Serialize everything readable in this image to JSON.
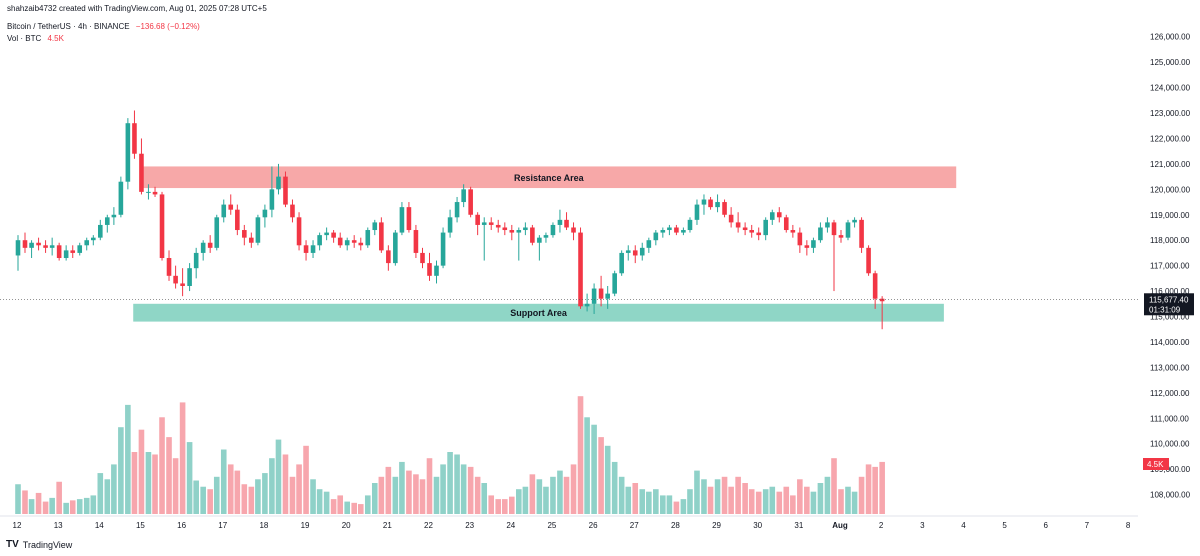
{
  "header": {
    "created": "shahzaib4732 created with TradingView.com, Aug 01, 2025 07:28 UTC+5",
    "symbol": "Bitcoin / TetherUS · 4h · BINANCE",
    "change": "−136.68 (−0.12%)",
    "volume_label": "Vol · BTC",
    "volume_value": "4.5K"
  },
  "footer": {
    "logo": "TV",
    "brand": "TradingView"
  },
  "colors": {
    "up": "#26a69a",
    "down": "#f23645",
    "up_vol": "#8fd1c8",
    "down_vol": "#f7a6ad",
    "resistance": "#f7a8a8",
    "support": "#8fd6c6"
  },
  "chart_data": {
    "type": "candlestick",
    "price_axis": {
      "ylim": [
        107000,
        126500
      ],
      "ticks": [
        "108,000.00",
        "109,000.00",
        "110,000.00",
        "111,000.00",
        "112,000.00",
        "113,000.00",
        "114,000.00",
        "115,000.00",
        "116,000.00",
        "117,000.00",
        "118,000.00",
        "119,000.00",
        "120,000.00",
        "121,000.00",
        "122,000.00",
        "123,000.00",
        "124,000.00",
        "125,000.00",
        "126,000.00"
      ],
      "tick_values": [
        108000,
        109000,
        110000,
        111000,
        112000,
        113000,
        114000,
        115000,
        116000,
        117000,
        118000,
        119000,
        120000,
        121000,
        122000,
        123000,
        124000,
        125000,
        126000
      ]
    },
    "time_axis": {
      "labels": [
        "12",
        "13",
        "14",
        "15",
        "16",
        "17",
        "18",
        "19",
        "20",
        "21",
        "22",
        "23",
        "24",
        "25",
        "26",
        "27",
        "28",
        "29",
        "30",
        "31",
        "Aug",
        "2",
        "3",
        "4",
        "5",
        "6",
        "7",
        "8"
      ]
    },
    "current_price": {
      "label": "115,677.40",
      "value": 115677.4,
      "countdown": "01:31:09"
    },
    "volume_tag": "4.5K",
    "zones": [
      {
        "label": "Resistance Area",
        "from_day": 15,
        "to_day": 34.8,
        "low": 120050,
        "high": 120900
      },
      {
        "label": "Support Area",
        "from_day": 14.8,
        "to_day": 34.5,
        "low": 114800,
        "high": 115500
      }
    ],
    "candles": [
      {
        "t": 0.0,
        "o": 117400,
        "h": 118200,
        "l": 116800,
        "c": 118000,
        "v": 0.24
      },
      {
        "t": 0.17,
        "o": 118000,
        "h": 118300,
        "l": 117500,
        "c": 117700,
        "v": 0.19
      },
      {
        "t": 0.33,
        "o": 117700,
        "h": 118000,
        "l": 117300,
        "c": 117900,
        "v": 0.12
      },
      {
        "t": 0.5,
        "o": 117900,
        "h": 118100,
        "l": 117600,
        "c": 117800,
        "v": 0.17
      },
      {
        "t": 0.67,
        "o": 117800,
        "h": 118000,
        "l": 117500,
        "c": 117700,
        "v": 0.1
      },
      {
        "t": 0.83,
        "o": 117700,
        "h": 118100,
        "l": 117400,
        "c": 117800,
        "v": 0.13
      },
      {
        "t": 1.0,
        "o": 117800,
        "h": 117900,
        "l": 117200,
        "c": 117300,
        "v": 0.26
      },
      {
        "t": 1.17,
        "o": 117300,
        "h": 117800,
        "l": 117200,
        "c": 117600,
        "v": 0.09
      },
      {
        "t": 1.33,
        "o": 117600,
        "h": 117800,
        "l": 117300,
        "c": 117500,
        "v": 0.11
      },
      {
        "t": 1.5,
        "o": 117500,
        "h": 117900,
        "l": 117400,
        "c": 117800,
        "v": 0.12
      },
      {
        "t": 1.67,
        "o": 117800,
        "h": 118100,
        "l": 117600,
        "c": 118000,
        "v": 0.13
      },
      {
        "t": 1.83,
        "o": 118000,
        "h": 118200,
        "l": 117800,
        "c": 118100,
        "v": 0.15
      },
      {
        "t": 2.0,
        "o": 118100,
        "h": 118800,
        "l": 118000,
        "c": 118600,
        "v": 0.33
      },
      {
        "t": 2.17,
        "o": 118600,
        "h": 119000,
        "l": 118300,
        "c": 118900,
        "v": 0.28
      },
      {
        "t": 2.33,
        "o": 118900,
        "h": 119300,
        "l": 118600,
        "c": 119000,
        "v": 0.4
      },
      {
        "t": 2.5,
        "o": 119000,
        "h": 120500,
        "l": 118900,
        "c": 120300,
        "v": 0.7
      },
      {
        "t": 2.67,
        "o": 120300,
        "h": 122800,
        "l": 120000,
        "c": 122600,
        "v": 0.88
      },
      {
        "t": 2.83,
        "o": 122600,
        "h": 123100,
        "l": 121200,
        "c": 121400,
        "v": 0.5
      },
      {
        "t": 3.0,
        "o": 121400,
        "h": 122000,
        "l": 119800,
        "c": 119900,
        "v": 0.68
      },
      {
        "t": 3.17,
        "o": 119900,
        "h": 120200,
        "l": 119600,
        "c": 119900,
        "v": 0.5
      },
      {
        "t": 3.33,
        "o": 119900,
        "h": 120100,
        "l": 119700,
        "c": 119800,
        "v": 0.48
      },
      {
        "t": 3.5,
        "o": 119800,
        "h": 119900,
        "l": 117200,
        "c": 117300,
        "v": 0.78
      },
      {
        "t": 3.67,
        "o": 117300,
        "h": 117600,
        "l": 116400,
        "c": 116600,
        "v": 0.62
      },
      {
        "t": 3.83,
        "o": 116600,
        "h": 117000,
        "l": 116100,
        "c": 116300,
        "v": 0.45
      },
      {
        "t": 4.0,
        "o": 116300,
        "h": 116900,
        "l": 115800,
        "c": 116200,
        "v": 0.9
      },
      {
        "t": 4.17,
        "o": 116200,
        "h": 117100,
        "l": 116000,
        "c": 116900,
        "v": 0.58
      },
      {
        "t": 4.33,
        "o": 116900,
        "h": 117700,
        "l": 116500,
        "c": 117500,
        "v": 0.27
      },
      {
        "t": 4.5,
        "o": 117500,
        "h": 118000,
        "l": 117200,
        "c": 117900,
        "v": 0.22
      },
      {
        "t": 4.67,
        "o": 117900,
        "h": 118200,
        "l": 117500,
        "c": 117700,
        "v": 0.2
      },
      {
        "t": 4.83,
        "o": 117700,
        "h": 119000,
        "l": 117600,
        "c": 118900,
        "v": 0.3
      },
      {
        "t": 5.0,
        "o": 118900,
        "h": 119600,
        "l": 118700,
        "c": 119400,
        "v": 0.52
      },
      {
        "t": 5.17,
        "o": 119400,
        "h": 119800,
        "l": 119000,
        "c": 119200,
        "v": 0.4
      },
      {
        "t": 5.33,
        "o": 119200,
        "h": 119400,
        "l": 118200,
        "c": 118400,
        "v": 0.35
      },
      {
        "t": 5.5,
        "o": 118400,
        "h": 118600,
        "l": 117800,
        "c": 118100,
        "v": 0.24
      },
      {
        "t": 5.67,
        "o": 118100,
        "h": 118300,
        "l": 117700,
        "c": 117900,
        "v": 0.22
      },
      {
        "t": 5.83,
        "o": 117900,
        "h": 119000,
        "l": 117800,
        "c": 118900,
        "v": 0.28
      },
      {
        "t": 6.0,
        "o": 118900,
        "h": 119400,
        "l": 118500,
        "c": 119200,
        "v": 0.33
      },
      {
        "t": 6.17,
        "o": 119200,
        "h": 120900,
        "l": 118900,
        "c": 120000,
        "v": 0.45
      },
      {
        "t": 6.33,
        "o": 120000,
        "h": 121000,
        "l": 119800,
        "c": 120500,
        "v": 0.6
      },
      {
        "t": 6.5,
        "o": 120500,
        "h": 120700,
        "l": 119300,
        "c": 119400,
        "v": 0.48
      },
      {
        "t": 6.67,
        "o": 119400,
        "h": 119600,
        "l": 118700,
        "c": 118900,
        "v": 0.3
      },
      {
        "t": 6.83,
        "o": 118900,
        "h": 119100,
        "l": 117600,
        "c": 117800,
        "v": 0.4
      },
      {
        "t": 7.0,
        "o": 117800,
        "h": 118000,
        "l": 117200,
        "c": 117500,
        "v": 0.55
      },
      {
        "t": 7.17,
        "o": 117500,
        "h": 118000,
        "l": 117300,
        "c": 117800,
        "v": 0.28
      },
      {
        "t": 7.33,
        "o": 117800,
        "h": 118300,
        "l": 117600,
        "c": 118200,
        "v": 0.2
      },
      {
        "t": 7.5,
        "o": 118200,
        "h": 118500,
        "l": 118000,
        "c": 118300,
        "v": 0.18
      },
      {
        "t": 7.67,
        "o": 118300,
        "h": 118400,
        "l": 117900,
        "c": 118100,
        "v": 0.12
      },
      {
        "t": 7.83,
        "o": 118100,
        "h": 118300,
        "l": 117700,
        "c": 117800,
        "v": 0.15
      },
      {
        "t": 8.0,
        "o": 117800,
        "h": 118100,
        "l": 117600,
        "c": 118000,
        "v": 0.1
      },
      {
        "t": 8.17,
        "o": 118000,
        "h": 118200,
        "l": 117700,
        "c": 117900,
        "v": 0.09
      },
      {
        "t": 8.33,
        "o": 117900,
        "h": 118100,
        "l": 117600,
        "c": 117800,
        "v": 0.08
      },
      {
        "t": 8.5,
        "o": 117800,
        "h": 118500,
        "l": 117700,
        "c": 118400,
        "v": 0.15
      },
      {
        "t": 8.67,
        "o": 118400,
        "h": 118800,
        "l": 118200,
        "c": 118700,
        "v": 0.25
      },
      {
        "t": 8.83,
        "o": 118700,
        "h": 118900,
        "l": 117500,
        "c": 117600,
        "v": 0.3
      },
      {
        "t": 9.0,
        "o": 117600,
        "h": 117800,
        "l": 116800,
        "c": 117100,
        "v": 0.38
      },
      {
        "t": 9.17,
        "o": 117100,
        "h": 118400,
        "l": 117000,
        "c": 118300,
        "v": 0.3
      },
      {
        "t": 9.33,
        "o": 118300,
        "h": 119500,
        "l": 118200,
        "c": 119300,
        "v": 0.42
      },
      {
        "t": 9.5,
        "o": 119300,
        "h": 119500,
        "l": 118300,
        "c": 118400,
        "v": 0.35
      },
      {
        "t": 9.67,
        "o": 118400,
        "h": 118600,
        "l": 117300,
        "c": 117500,
        "v": 0.32
      },
      {
        "t": 9.83,
        "o": 117500,
        "h": 117700,
        "l": 116900,
        "c": 117100,
        "v": 0.28
      },
      {
        "t": 10.0,
        "o": 117100,
        "h": 117500,
        "l": 116400,
        "c": 116600,
        "v": 0.45
      },
      {
        "t": 10.17,
        "o": 116600,
        "h": 117200,
        "l": 116300,
        "c": 117000,
        "v": 0.3
      },
      {
        "t": 10.33,
        "o": 117000,
        "h": 118500,
        "l": 116900,
        "c": 118300,
        "v": 0.4
      },
      {
        "t": 10.5,
        "o": 118300,
        "h": 119200,
        "l": 118100,
        "c": 118900,
        "v": 0.5
      },
      {
        "t": 10.67,
        "o": 118900,
        "h": 119700,
        "l": 118700,
        "c": 119500,
        "v": 0.48
      },
      {
        "t": 10.83,
        "o": 119500,
        "h": 120200,
        "l": 119300,
        "c": 120000,
        "v": 0.4
      },
      {
        "t": 11.0,
        "o": 120000,
        "h": 120100,
        "l": 118900,
        "c": 119000,
        "v": 0.38
      },
      {
        "t": 11.17,
        "o": 119000,
        "h": 119100,
        "l": 118200,
        "c": 118600,
        "v": 0.3
      },
      {
        "t": 11.33,
        "o": 118600,
        "h": 118900,
        "l": 117200,
        "c": 118700,
        "v": 0.25
      },
      {
        "t": 11.5,
        "o": 118700,
        "h": 118900,
        "l": 118400,
        "c": 118600,
        "v": 0.15
      },
      {
        "t": 11.67,
        "o": 118600,
        "h": 118800,
        "l": 118300,
        "c": 118500,
        "v": 0.12
      },
      {
        "t": 11.83,
        "o": 118500,
        "h": 118700,
        "l": 118200,
        "c": 118400,
        "v": 0.12
      },
      {
        "t": 12.0,
        "o": 118400,
        "h": 118600,
        "l": 118000,
        "c": 118300,
        "v": 0.14
      },
      {
        "t": 12.17,
        "o": 118300,
        "h": 118500,
        "l": 117200,
        "c": 118400,
        "v": 0.2
      },
      {
        "t": 12.33,
        "o": 118400,
        "h": 118700,
        "l": 118200,
        "c": 118500,
        "v": 0.22
      },
      {
        "t": 12.5,
        "o": 118500,
        "h": 118600,
        "l": 117800,
        "c": 117900,
        "v": 0.32
      },
      {
        "t": 12.67,
        "o": 117900,
        "h": 118200,
        "l": 117200,
        "c": 118100,
        "v": 0.28
      },
      {
        "t": 12.83,
        "o": 118100,
        "h": 118300,
        "l": 117900,
        "c": 118200,
        "v": 0.22
      },
      {
        "t": 13.0,
        "o": 118200,
        "h": 118700,
        "l": 118100,
        "c": 118600,
        "v": 0.3
      },
      {
        "t": 13.17,
        "o": 118600,
        "h": 119200,
        "l": 118300,
        "c": 118800,
        "v": 0.35
      },
      {
        "t": 13.33,
        "o": 118800,
        "h": 119100,
        "l": 118400,
        "c": 118500,
        "v": 0.3
      },
      {
        "t": 13.5,
        "o": 118500,
        "h": 118700,
        "l": 118000,
        "c": 118300,
        "v": 0.4
      },
      {
        "t": 13.67,
        "o": 118300,
        "h": 118500,
        "l": 115300,
        "c": 115400,
        "v": 0.95
      },
      {
        "t": 13.83,
        "o": 115400,
        "h": 115900,
        "l": 115200,
        "c": 115500,
        "v": 0.78
      },
      {
        "t": 14.0,
        "o": 115500,
        "h": 116300,
        "l": 115100,
        "c": 116100,
        "v": 0.72
      },
      {
        "t": 14.17,
        "o": 116100,
        "h": 116600,
        "l": 115400,
        "c": 115700,
        "v": 0.62
      },
      {
        "t": 14.33,
        "o": 115700,
        "h": 116200,
        "l": 115300,
        "c": 115900,
        "v": 0.55
      },
      {
        "t": 14.5,
        "o": 115900,
        "h": 116800,
        "l": 115800,
        "c": 116700,
        "v": 0.42
      },
      {
        "t": 14.67,
        "o": 116700,
        "h": 117600,
        "l": 116600,
        "c": 117500,
        "v": 0.3
      },
      {
        "t": 14.83,
        "o": 117500,
        "h": 117800,
        "l": 117200,
        "c": 117600,
        "v": 0.22
      },
      {
        "t": 15.0,
        "o": 117600,
        "h": 117800,
        "l": 117100,
        "c": 117400,
        "v": 0.25
      },
      {
        "t": 15.17,
        "o": 117400,
        "h": 117900,
        "l": 117200,
        "c": 117700,
        "v": 0.2
      },
      {
        "t": 15.33,
        "o": 117700,
        "h": 118100,
        "l": 117500,
        "c": 118000,
        "v": 0.18
      },
      {
        "t": 15.5,
        "o": 118000,
        "h": 118400,
        "l": 117800,
        "c": 118300,
        "v": 0.2
      },
      {
        "t": 15.67,
        "o": 118300,
        "h": 118500,
        "l": 118100,
        "c": 118400,
        "v": 0.15
      },
      {
        "t": 15.83,
        "o": 118400,
        "h": 118600,
        "l": 118200,
        "c": 118500,
        "v": 0.15
      },
      {
        "t": 16.0,
        "o": 118500,
        "h": 118600,
        "l": 118200,
        "c": 118300,
        "v": 0.1
      },
      {
        "t": 16.17,
        "o": 118300,
        "h": 118500,
        "l": 118200,
        "c": 118400,
        "v": 0.12
      },
      {
        "t": 16.33,
        "o": 118400,
        "h": 118900,
        "l": 118300,
        "c": 118800,
        "v": 0.2
      },
      {
        "t": 16.5,
        "o": 118800,
        "h": 119600,
        "l": 118600,
        "c": 119400,
        "v": 0.35
      },
      {
        "t": 16.67,
        "o": 119400,
        "h": 119800,
        "l": 119000,
        "c": 119600,
        "v": 0.28
      },
      {
        "t": 16.83,
        "o": 119600,
        "h": 119700,
        "l": 119200,
        "c": 119300,
        "v": 0.22
      },
      {
        "t": 17.0,
        "o": 119300,
        "h": 119800,
        "l": 119100,
        "c": 119500,
        "v": 0.28
      },
      {
        "t": 17.17,
        "o": 119500,
        "h": 119600,
        "l": 118900,
        "c": 119000,
        "v": 0.3
      },
      {
        "t": 17.33,
        "o": 119000,
        "h": 119300,
        "l": 118500,
        "c": 118700,
        "v": 0.22
      },
      {
        "t": 17.5,
        "o": 118700,
        "h": 119100,
        "l": 118300,
        "c": 118500,
        "v": 0.3
      },
      {
        "t": 17.67,
        "o": 118500,
        "h": 118700,
        "l": 118200,
        "c": 118400,
        "v": 0.25
      },
      {
        "t": 17.83,
        "o": 118400,
        "h": 118600,
        "l": 118100,
        "c": 118300,
        "v": 0.2
      },
      {
        "t": 18.0,
        "o": 118300,
        "h": 118500,
        "l": 118000,
        "c": 118200,
        "v": 0.18
      },
      {
        "t": 18.17,
        "o": 118200,
        "h": 118900,
        "l": 118000,
        "c": 118800,
        "v": 0.2
      },
      {
        "t": 18.33,
        "o": 118800,
        "h": 119200,
        "l": 118600,
        "c": 119100,
        "v": 0.22
      },
      {
        "t": 18.5,
        "o": 119100,
        "h": 119300,
        "l": 118700,
        "c": 118900,
        "v": 0.18
      },
      {
        "t": 18.67,
        "o": 118900,
        "h": 119000,
        "l": 118300,
        "c": 118400,
        "v": 0.22
      },
      {
        "t": 18.83,
        "o": 118400,
        "h": 118600,
        "l": 118100,
        "c": 118300,
        "v": 0.15
      },
      {
        "t": 19.0,
        "o": 118300,
        "h": 118500,
        "l": 117500,
        "c": 117800,
        "v": 0.28
      },
      {
        "t": 19.17,
        "o": 117800,
        "h": 118000,
        "l": 117400,
        "c": 117700,
        "v": 0.22
      },
      {
        "t": 19.33,
        "o": 117700,
        "h": 118100,
        "l": 117500,
        "c": 118000,
        "v": 0.18
      },
      {
        "t": 19.5,
        "o": 118000,
        "h": 118700,
        "l": 117900,
        "c": 118500,
        "v": 0.25
      },
      {
        "t": 19.67,
        "o": 118500,
        "h": 118900,
        "l": 118300,
        "c": 118700,
        "v": 0.3
      },
      {
        "t": 19.83,
        "o": 118700,
        "h": 118800,
        "l": 116000,
        "c": 118200,
        "v": 0.45
      },
      {
        "t": 20.0,
        "o": 118200,
        "h": 118400,
        "l": 117900,
        "c": 118100,
        "v": 0.2
      },
      {
        "t": 20.17,
        "o": 118100,
        "h": 118800,
        "l": 118000,
        "c": 118700,
        "v": 0.22
      },
      {
        "t": 20.33,
        "o": 118700,
        "h": 118900,
        "l": 118500,
        "c": 118800,
        "v": 0.18
      },
      {
        "t": 20.5,
        "o": 118800,
        "h": 118900,
        "l": 117500,
        "c": 117700,
        "v": 0.3
      },
      {
        "t": 20.67,
        "o": 117700,
        "h": 117800,
        "l": 116600,
        "c": 116700,
        "v": 0.4
      },
      {
        "t": 20.83,
        "o": 116700,
        "h": 116800,
        "l": 115300,
        "c": 115700,
        "v": 0.38
      },
      {
        "t": 21.0,
        "o": 115700,
        "h": 115800,
        "l": 114500,
        "c": 115600,
        "v": 0.42
      }
    ]
  }
}
